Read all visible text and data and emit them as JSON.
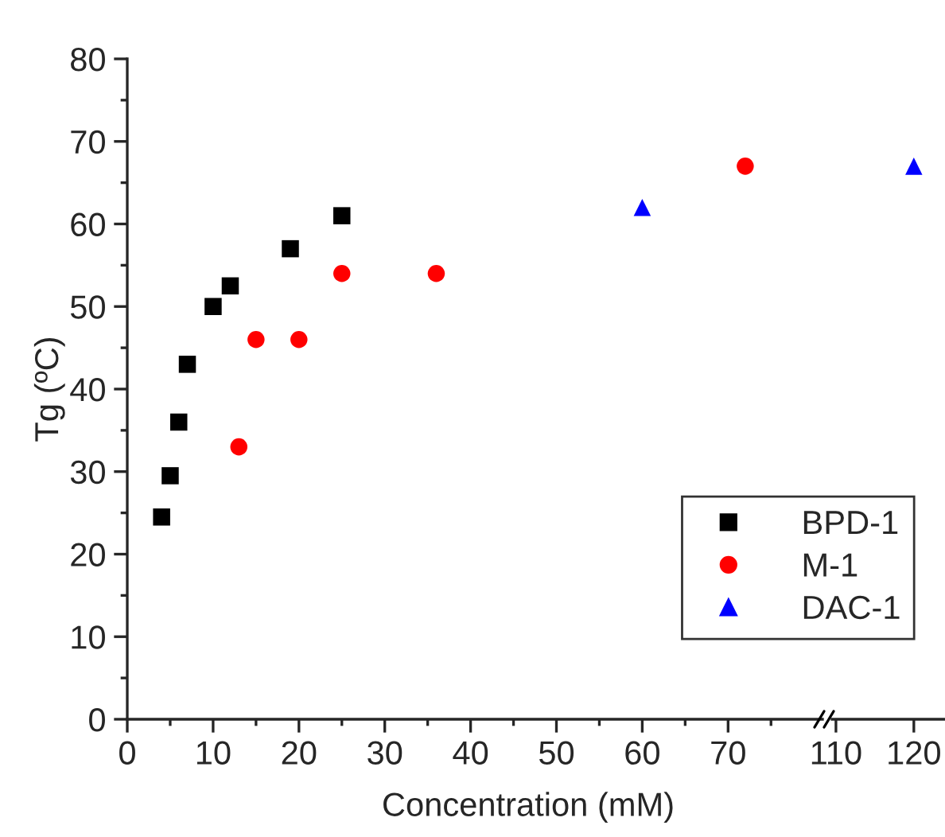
{
  "chart_data": [
    {
      "type": "scatter",
      "xlabel": "Concentration (mM)",
      "ylabel": "Tg (ºC)",
      "xlim": [
        0,
        81
      ],
      "xticks": [
        0,
        10,
        20,
        30,
        40,
        50,
        60,
        70
      ],
      "ylim": [
        0,
        80
      ],
      "yticks": [
        0,
        10,
        20,
        30,
        40,
        50,
        60,
        70,
        80
      ],
      "legend": "bottom right",
      "grid": false,
      "series": [
        {
          "name": "BPD-1",
          "color": "#000000",
          "marker": "square",
          "x": [
            4,
            5,
            6,
            7,
            10,
            12,
            19,
            25
          ],
          "values": [
            24.5,
            29.5,
            36,
            43,
            50,
            52.5,
            57,
            61
          ]
        },
        {
          "name": "M-1",
          "color": "#ff0000",
          "marker": "circle",
          "x": [
            13,
            15,
            20,
            25,
            36,
            72
          ],
          "values": [
            33,
            46,
            46,
            54,
            54,
            67
          ]
        },
        {
          "name": "DAC-1",
          "color": "#0000ff",
          "marker": "triangle",
          "x": [
            60
          ],
          "values": [
            62
          ]
        }
      ]
    },
    {
      "type": "scatter",
      "xlim": [
        109.5,
        124
      ],
      "xticks": [
        110,
        120
      ],
      "ylim": [
        0,
        80
      ],
      "tick_labels": "x",
      "grid": false,
      "series": [
        {
          "color": "#0000ff",
          "marker": "triangle",
          "x": [
            120
          ],
          "values": [
            67
          ]
        }
      ]
    }
  ]
}
